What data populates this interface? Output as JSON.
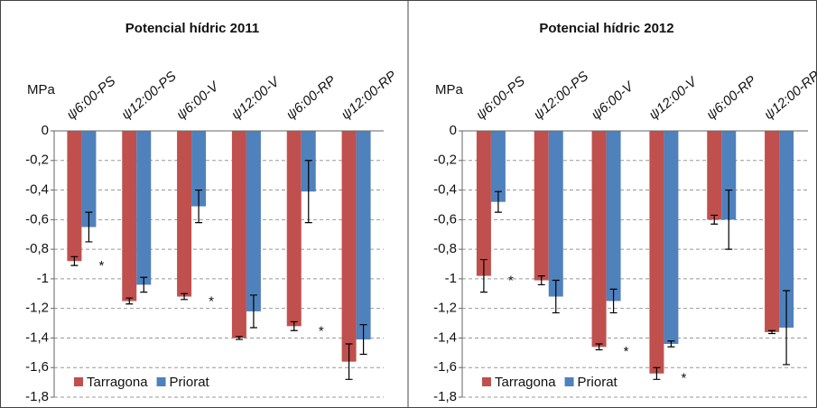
{
  "chart_data": [
    {
      "type": "bar",
      "title": "Potencial hídric 2011",
      "y_label": "MPa",
      "categories": [
        "ψ6:00-PS",
        "ψ12:00-PS",
        "ψ6:00-V",
        "ψ12:00-V",
        "ψ6:00-RP",
        "ψ12:00-RP"
      ],
      "series": [
        {
          "name": "Tarragona",
          "color": "#c0504d",
          "values": [
            -0.88,
            -1.15,
            -1.12,
            -1.4,
            -1.32,
            -1.56
          ],
          "errors": [
            0.03,
            0.02,
            0.02,
            0.01,
            0.03,
            0.12
          ]
        },
        {
          "name": "Priorat",
          "color": "#4f81bd",
          "values": [
            -0.65,
            -1.04,
            -0.51,
            -1.22,
            -0.41,
            -1.41
          ],
          "errors": [
            0.1,
            0.05,
            0.11,
            0.11,
            0.21,
            0.1
          ]
        }
      ],
      "significance": [
        "*",
        null,
        "*",
        null,
        "*",
        null
      ],
      "ylim": [
        0,
        -1.8
      ],
      "yticks": [
        0,
        {
          "value": -0.2,
          "label": "-0,2"
        },
        {
          "value": -0.4,
          "label": "-0,4"
        },
        {
          "value": -0.6,
          "label": "-0,6"
        },
        {
          "value": -0.8,
          "label": "-0,8"
        },
        -1,
        {
          "value": -1.2,
          "label": "-1,2"
        },
        {
          "value": -1.4,
          "label": "-1,4"
        },
        {
          "value": -1.6,
          "label": "-1,6"
        },
        {
          "value": -1.8,
          "label": "-1,8"
        }
      ],
      "grid": true,
      "legend": "lower left"
    },
    {
      "type": "bar",
      "title": "Potencial hídric 2012",
      "y_label": "MPa",
      "categories": [
        "ψ6:00-PS",
        "ψ12:00-PS",
        "ψ6:00-V",
        "ψ12:00-V",
        "ψ6:00-RP",
        "ψ12:00-RP"
      ],
      "series": [
        {
          "name": "Tarragona",
          "color": "#c0504d",
          "values": [
            -0.98,
            -1.01,
            -1.46,
            -1.64,
            -0.6,
            -1.36
          ],
          "errors": [
            0.11,
            0.03,
            0.02,
            0.04,
            0.03,
            0.01
          ]
        },
        {
          "name": "Priorat",
          "color": "#4f81bd",
          "values": [
            -0.48,
            -1.12,
            -1.15,
            -1.44,
            -0.6,
            -1.33
          ],
          "errors": [
            0.07,
            0.11,
            0.08,
            0.02,
            0.2,
            0.25
          ]
        }
      ],
      "significance": [
        "*",
        null,
        "*",
        "*",
        null,
        null
      ],
      "ylim": [
        0,
        -1.8
      ],
      "yticks": [
        0,
        {
          "value": -0.2,
          "label": "-0,2"
        },
        {
          "value": -0.4,
          "label": "-0,4"
        },
        {
          "value": -0.6,
          "label": "-0,6"
        },
        {
          "value": -0.8,
          "label": "-0,8"
        },
        -1,
        {
          "value": -1.2,
          "label": "-1,2"
        },
        {
          "value": -1.4,
          "label": "-1,4"
        },
        {
          "value": -1.6,
          "label": "-1,6"
        },
        {
          "value": -1.8,
          "label": "-1,8"
        }
      ],
      "grid": true,
      "legend": "lower left"
    }
  ]
}
